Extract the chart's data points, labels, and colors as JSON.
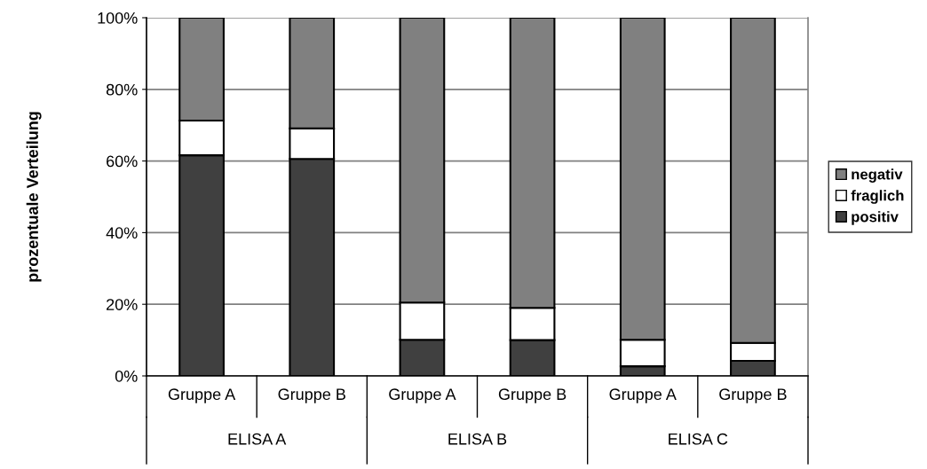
{
  "chart_data": {
    "type": "bar",
    "stacked": true,
    "ylabel": "prozentuale Verteilung",
    "categories": [
      "Gruppe A",
      "Gruppe B",
      "Gruppe A",
      "Gruppe B",
      "Gruppe A",
      "Gruppe B"
    ],
    "series": [
      {
        "name": "positiv",
        "color": "#404040",
        "values": [
          61.6,
          60.6,
          10.1,
          10.0,
          2.7,
          4.2
        ]
      },
      {
        "name": "fraglich",
        "color": "#ffffff",
        "values": [
          9.7,
          8.5,
          10.4,
          9.0,
          7.4,
          5.0
        ]
      },
      {
        "name": "negativ",
        "color": "#808080",
        "values": [
          28.7,
          30.9,
          79.5,
          81.0,
          89.9,
          90.8
        ]
      }
    ],
    "annotations": [
      "ELISA A",
      "ELISA B",
      "ELISA C"
    ],
    "ylim": [
      0,
      100
    ],
    "yticks": [
      {
        "value": 0,
        "label": "0%"
      },
      {
        "value": 20,
        "label": "20%"
      },
      {
        "value": 40,
        "label": "40%"
      },
      {
        "value": 60,
        "label": "60%"
      },
      {
        "value": 80,
        "label": "80%"
      },
      {
        "value": 100,
        "label": "100%"
      }
    ],
    "grid": "y",
    "legend": "right"
  }
}
